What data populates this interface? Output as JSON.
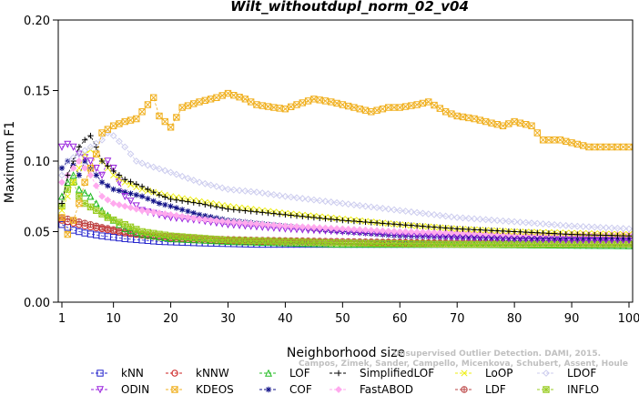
{
  "chart_data": {
    "type": "line",
    "title": "Wilt_withoutdupl_norm_02_v04",
    "xlabel": "Neighborhood size",
    "ylabel": "Maximum F1",
    "xlim": [
      1,
      100
    ],
    "ylim": [
      0,
      0.2
    ],
    "xticks": [
      1,
      10,
      20,
      30,
      40,
      50,
      60,
      70,
      80,
      90,
      100
    ],
    "xtick_labels": [
      "1",
      "10",
      "20",
      "30",
      "40",
      "50",
      "60",
      "70",
      "80",
      "90",
      "100"
    ],
    "yticks": [
      0,
      0.05,
      0.1,
      0.15,
      0.2
    ],
    "ytick_labels": [
      "0.00",
      "0.05",
      "0.10",
      "0.15",
      "0.20"
    ],
    "grid": false,
    "legend_position": "bottom",
    "watermark_lines": [
      "Unsupervised Outlier Detection. DAMI, 2015.",
      "Campos, Zimek, Sander, Campello, Micenkova, Schubert, Assent, Houle"
    ],
    "series": [
      {
        "name": "kNN",
        "color": "#2222cc",
        "marker": "square",
        "points": [
          [
            1,
            0.055
          ],
          [
            2,
            0.053
          ],
          [
            3,
            0.051
          ],
          [
            5,
            0.049
          ],
          [
            8,
            0.047
          ],
          [
            12,
            0.045
          ],
          [
            18,
            0.043
          ],
          [
            25,
            0.042
          ],
          [
            35,
            0.041
          ],
          [
            50,
            0.041
          ],
          [
            70,
            0.041
          ],
          [
            100,
            0.041
          ]
        ]
      },
      {
        "name": "kNNW",
        "color": "#cc2222",
        "marker": "circle",
        "points": [
          [
            1,
            0.058
          ],
          [
            2,
            0.057
          ],
          [
            3,
            0.056
          ],
          [
            5,
            0.054
          ],
          [
            8,
            0.052
          ],
          [
            12,
            0.049
          ],
          [
            18,
            0.046
          ],
          [
            25,
            0.044
          ],
          [
            35,
            0.043
          ],
          [
            50,
            0.042
          ],
          [
            70,
            0.042
          ],
          [
            100,
            0.042
          ]
        ]
      },
      {
        "name": "LOF",
        "color": "#22bb22",
        "marker": "triangle-up",
        "points": [
          [
            1,
            0.075
          ],
          [
            2,
            0.085
          ],
          [
            3,
            0.09
          ],
          [
            4,
            0.08
          ],
          [
            6,
            0.075
          ],
          [
            8,
            0.065
          ],
          [
            10,
            0.058
          ],
          [
            12,
            0.052
          ],
          [
            15,
            0.048
          ],
          [
            20,
            0.045
          ],
          [
            30,
            0.043
          ],
          [
            50,
            0.041
          ],
          [
            70,
            0.041
          ],
          [
            100,
            0.04
          ]
        ]
      },
      {
        "name": "SimplifiedLOF",
        "color": "#000000",
        "marker": "plus",
        "points": [
          [
            1,
            0.07
          ],
          [
            2,
            0.09
          ],
          [
            3,
            0.1
          ],
          [
            4,
            0.11
          ],
          [
            5,
            0.115
          ],
          [
            6,
            0.118
          ],
          [
            7,
            0.11
          ],
          [
            8,
            0.1
          ],
          [
            10,
            0.093
          ],
          [
            12,
            0.087
          ],
          [
            15,
            0.082
          ],
          [
            18,
            0.076
          ],
          [
            20,
            0.073
          ],
          [
            25,
            0.07
          ],
          [
            30,
            0.066
          ],
          [
            40,
            0.062
          ],
          [
            50,
            0.058
          ],
          [
            60,
            0.055
          ],
          [
            70,
            0.052
          ],
          [
            80,
            0.05
          ],
          [
            90,
            0.048
          ],
          [
            100,
            0.047
          ]
        ]
      },
      {
        "name": "LoOP",
        "color": "#eeee11",
        "marker": "x",
        "points": [
          [
            1,
            0.065
          ],
          [
            2,
            0.075
          ],
          [
            3,
            0.085
          ],
          [
            4,
            0.095
          ],
          [
            5,
            0.105
          ],
          [
            6,
            0.108
          ],
          [
            7,
            0.105
          ],
          [
            8,
            0.1
          ],
          [
            10,
            0.09
          ],
          [
            12,
            0.085
          ],
          [
            15,
            0.08
          ],
          [
            20,
            0.075
          ],
          [
            30,
            0.068
          ],
          [
            40,
            0.063
          ],
          [
            50,
            0.059
          ],
          [
            60,
            0.055
          ],
          [
            70,
            0.052
          ],
          [
            80,
            0.05
          ],
          [
            90,
            0.049
          ],
          [
            100,
            0.048
          ]
        ]
      },
      {
        "name": "LDOF",
        "color": "#ccccee",
        "marker": "diamond",
        "points": [
          [
            1,
            0.09
          ],
          [
            2,
            0.1
          ],
          [
            4,
            0.105
          ],
          [
            6,
            0.11
          ],
          [
            8,
            0.115
          ],
          [
            9,
            0.12
          ],
          [
            10,
            0.118
          ],
          [
            12,
            0.11
          ],
          [
            14,
            0.1
          ],
          [
            16,
            0.097
          ],
          [
            20,
            0.092
          ],
          [
            25,
            0.085
          ],
          [
            30,
            0.08
          ],
          [
            35,
            0.078
          ],
          [
            40,
            0.075
          ],
          [
            50,
            0.07
          ],
          [
            60,
            0.065
          ],
          [
            70,
            0.06
          ],
          [
            80,
            0.057
          ],
          [
            90,
            0.054
          ],
          [
            100,
            0.052
          ]
        ]
      },
      {
        "name": "ODIN",
        "color": "#9922dd",
        "marker": "triangle-down",
        "points": [
          [
            1,
            0.11
          ],
          [
            2,
            0.112
          ],
          [
            3,
            0.11
          ],
          [
            4,
            0.105
          ],
          [
            6,
            0.1
          ],
          [
            8,
            0.09
          ],
          [
            9,
            0.1
          ],
          [
            10,
            0.095
          ],
          [
            12,
            0.075
          ],
          [
            15,
            0.065
          ],
          [
            18,
            0.062
          ],
          [
            20,
            0.06
          ],
          [
            25,
            0.058
          ],
          [
            30,
            0.055
          ],
          [
            40,
            0.052
          ],
          [
            50,
            0.05
          ],
          [
            60,
            0.048
          ],
          [
            70,
            0.046
          ],
          [
            80,
            0.045
          ],
          [
            90,
            0.044
          ],
          [
            100,
            0.044
          ]
        ]
      },
      {
        "name": "KDEOS",
        "color": "#f0b020",
        "marker": "square-x",
        "points": [
          [
            1,
            0.06
          ],
          [
            2,
            0.048
          ],
          [
            3,
            0.058
          ],
          [
            4,
            0.07
          ],
          [
            5,
            0.085
          ],
          [
            7,
            0.105
          ],
          [
            8,
            0.12
          ],
          [
            10,
            0.125
          ],
          [
            12,
            0.128
          ],
          [
            14,
            0.13
          ],
          [
            16,
            0.14
          ],
          [
            17,
            0.145
          ],
          [
            18,
            0.132
          ],
          [
            19,
            0.128
          ],
          [
            20,
            0.124
          ],
          [
            22,
            0.138
          ],
          [
            25,
            0.142
          ],
          [
            28,
            0.145
          ],
          [
            30,
            0.148
          ],
          [
            33,
            0.144
          ],
          [
            35,
            0.14
          ],
          [
            38,
            0.138
          ],
          [
            40,
            0.137
          ],
          [
            42,
            0.14
          ],
          [
            45,
            0.144
          ],
          [
            48,
            0.142
          ],
          [
            50,
            0.14
          ],
          [
            53,
            0.137
          ],
          [
            55,
            0.135
          ],
          [
            58,
            0.138
          ],
          [
            60,
            0.138
          ],
          [
            63,
            0.14
          ],
          [
            65,
            0.142
          ],
          [
            68,
            0.135
          ],
          [
            70,
            0.132
          ],
          [
            73,
            0.13
          ],
          [
            75,
            0.128
          ],
          [
            78,
            0.125
          ],
          [
            80,
            0.128
          ],
          [
            83,
            0.125
          ],
          [
            85,
            0.115
          ],
          [
            88,
            0.115
          ],
          [
            90,
            0.113
          ],
          [
            93,
            0.11
          ],
          [
            96,
            0.11
          ],
          [
            100,
            0.11
          ]
        ]
      },
      {
        "name": "COF",
        "color": "#111188",
        "marker": "asterisk",
        "points": [
          [
            1,
            0.095
          ],
          [
            2,
            0.1
          ],
          [
            3,
            0.097
          ],
          [
            4,
            0.09
          ],
          [
            5,
            0.1
          ],
          [
            6,
            0.095
          ],
          [
            7,
            0.09
          ],
          [
            8,
            0.085
          ],
          [
            10,
            0.08
          ],
          [
            12,
            0.078
          ],
          [
            15,
            0.075
          ],
          [
            18,
            0.07
          ],
          [
            20,
            0.068
          ],
          [
            25,
            0.062
          ],
          [
            30,
            0.058
          ],
          [
            40,
            0.054
          ],
          [
            50,
            0.05
          ],
          [
            60,
            0.047
          ],
          [
            70,
            0.046
          ],
          [
            80,
            0.045
          ],
          [
            90,
            0.045
          ],
          [
            100,
            0.045
          ]
        ]
      },
      {
        "name": "FastABOD",
        "color": "#ffaaee",
        "marker": "diamond-filled",
        "points": [
          [
            1,
            0.085
          ],
          [
            2,
            0.09
          ],
          [
            3,
            0.095
          ],
          [
            4,
            0.1
          ],
          [
            5,
            0.095
          ],
          [
            6,
            0.09
          ],
          [
            8,
            0.075
          ],
          [
            10,
            0.07
          ],
          [
            12,
            0.068
          ],
          [
            15,
            0.065
          ],
          [
            20,
            0.062
          ],
          [
            25,
            0.059
          ],
          [
            30,
            0.057
          ],
          [
            40,
            0.054
          ],
          [
            50,
            0.052
          ],
          [
            60,
            0.05
          ],
          [
            70,
            0.049
          ],
          [
            80,
            0.048
          ],
          [
            90,
            0.048
          ],
          [
            100,
            0.048
          ]
        ]
      },
      {
        "name": "LDF",
        "color": "#bb4444",
        "marker": "circle-plus",
        "points": [
          [
            1,
            0.06
          ],
          [
            2,
            0.059
          ],
          [
            3,
            0.058
          ],
          [
            5,
            0.056
          ],
          [
            8,
            0.053
          ],
          [
            12,
            0.05
          ],
          [
            18,
            0.047
          ],
          [
            25,
            0.045
          ],
          [
            35,
            0.044
          ],
          [
            50,
            0.043
          ],
          [
            70,
            0.042
          ],
          [
            100,
            0.042
          ]
        ]
      },
      {
        "name": "INFLO",
        "color": "#99cc22",
        "marker": "square-star",
        "points": [
          [
            1,
            0.068
          ],
          [
            2,
            0.08
          ],
          [
            3,
            0.085
          ],
          [
            4,
            0.075
          ],
          [
            5,
            0.07
          ],
          [
            7,
            0.065
          ],
          [
            9,
            0.06
          ],
          [
            12,
            0.055
          ],
          [
            15,
            0.05
          ],
          [
            20,
            0.047
          ],
          [
            30,
            0.044
          ],
          [
            50,
            0.042
          ],
          [
            70,
            0.041
          ],
          [
            100,
            0.041
          ]
        ]
      }
    ]
  }
}
